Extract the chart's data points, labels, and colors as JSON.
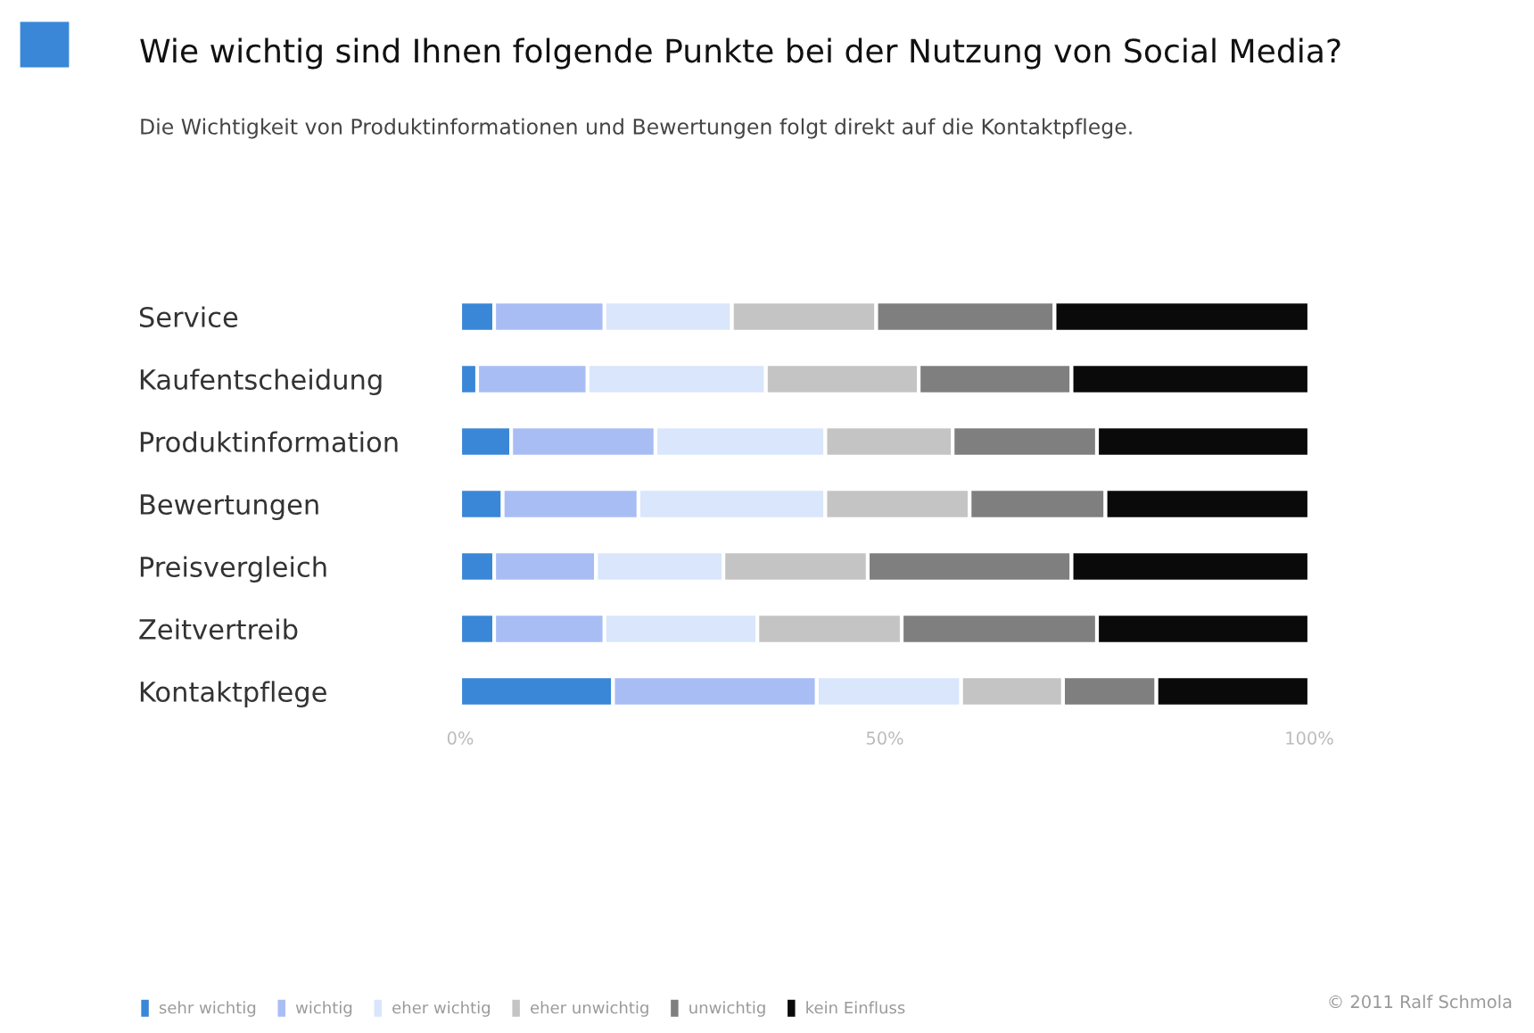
{
  "chart_data": {
    "type": "bar",
    "orientation": "horizontal",
    "stacked": true,
    "title": "Wie wichtig sind Ihnen folgende Punkte bei der Nutzung von Social Media?",
    "subtitle": "Die Wichtigkeit von Produktinformationen und Bewertungen folgt direkt auf die Kontaktpflege.",
    "categories": [
      "Service",
      "Kaufentscheidung",
      "Produktinformation",
      "Bewertungen",
      "Preisvergleich",
      "Zeitvertreib",
      "Kontaktpflege"
    ],
    "series": [
      {
        "name": "sehr wichtig",
        "color": "#3a87d8",
        "values": [
          4,
          2,
          6,
          5,
          4,
          4,
          18
        ]
      },
      {
        "name": "wichtig",
        "color": "#a9bdf5",
        "values": [
          13,
          13,
          17,
          16,
          12,
          13,
          24
        ]
      },
      {
        "name": "eher wichtig",
        "color": "#d9e6fb",
        "values": [
          15,
          21,
          20,
          22,
          15,
          18,
          17
        ]
      },
      {
        "name": "eher unwichtig",
        "color": "#c4c4c4",
        "values": [
          17,
          18,
          15,
          17,
          17,
          17,
          12
        ]
      },
      {
        "name": "unwichtig",
        "color": "#7f7f7f",
        "values": [
          21,
          18,
          17,
          16,
          24,
          23,
          11
        ]
      },
      {
        "name": "kein Einfluss",
        "color": "#0a0a0a",
        "values": [
          30,
          28,
          25,
          24,
          28,
          25,
          18
        ]
      }
    ],
    "xlim": [
      0,
      100
    ],
    "xticks": [
      {
        "value": 0,
        "label": "0%"
      },
      {
        "value": 50,
        "label": "50%"
      },
      {
        "value": 100,
        "label": "100%"
      }
    ],
    "legend": "bottom",
    "grid": false,
    "annotations": [
      "© 2011 Ralf Schmola"
    ]
  }
}
